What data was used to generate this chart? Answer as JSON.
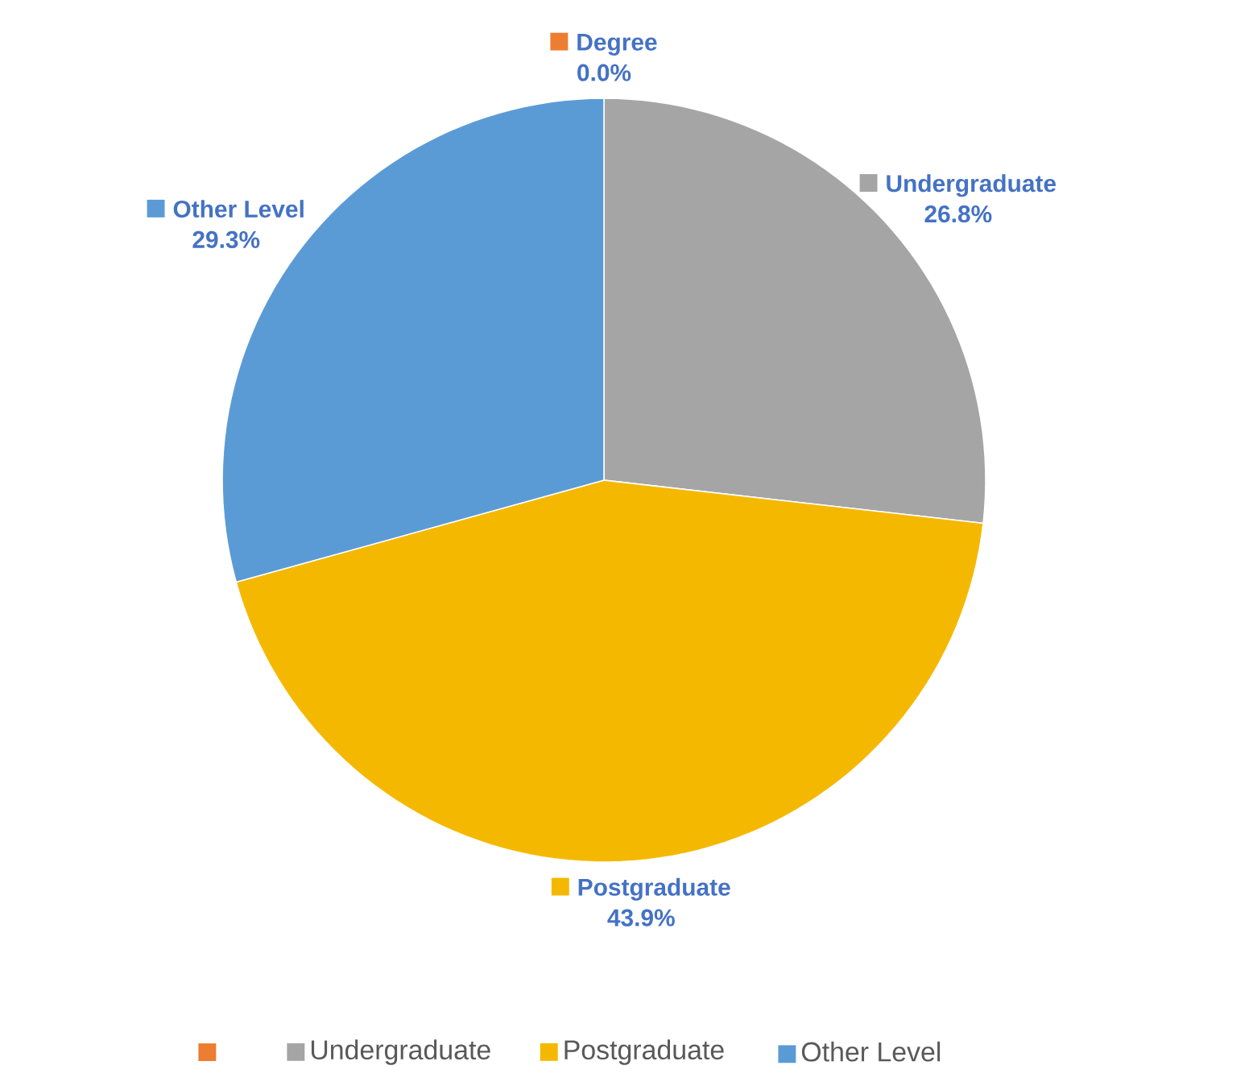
{
  "chart_data": {
    "type": "pie",
    "categories": [
      null,
      "Undergraduate",
      "Postgraduate",
      "Other Level"
    ],
    "values": [
      0,
      26.8,
      43.9,
      29.3
    ],
    "colors": [
      "#ed7d31",
      "#a5a5a5",
      "#f5b800",
      "#5b9bd5"
    ],
    "value_labels": [
      "0.0%",
      "26.8%",
      "43.9%",
      "29.3%"
    ],
    "annotations": [
      "Degree"
    ],
    "legend": "bottom"
  }
}
